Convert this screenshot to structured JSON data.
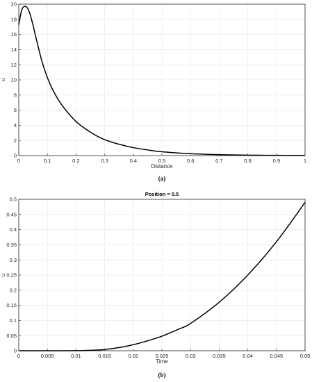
{
  "chart_data": [
    {
      "type": "line",
      "panel_label": "(a)",
      "title": "",
      "xlabel": "Distance",
      "ylabel": "u",
      "xlim": [
        0,
        1
      ],
      "ylim": [
        0,
        20
      ],
      "xticks": [
        0,
        0.1,
        0.2,
        0.3,
        0.4,
        0.5,
        0.6,
        0.7,
        0.8,
        0.9,
        1
      ],
      "xtick_labels": [
        "0",
        "0.1",
        "0.2",
        "0.3",
        "0.4",
        "0.5",
        "0.6",
        "0.7",
        "0.8",
        "0.9",
        "1"
      ],
      "yticks": [
        0,
        2,
        4,
        6,
        8,
        10,
        12,
        14,
        16,
        18,
        20
      ],
      "ytick_labels": [
        "0",
        "2",
        "4",
        "6",
        "8",
        "10",
        "12",
        "14",
        "16",
        "18",
        "20"
      ],
      "grid": true,
      "line_color": "#000000",
      "x": [
        0,
        0.01,
        0.02,
        0.03,
        0.04,
        0.05,
        0.06,
        0.08,
        0.1,
        0.12,
        0.15,
        0.2,
        0.25,
        0.3,
        0.35,
        0.4,
        0.45,
        0.5,
        0.6,
        0.7,
        0.8,
        0.9,
        1
      ],
      "y": [
        17.3,
        19.2,
        19.7,
        19.5,
        18.6,
        17.2,
        15.6,
        12.6,
        10.3,
        8.6,
        6.7,
        4.5,
        3.1,
        2.1,
        1.5,
        1.05,
        0.75,
        0.5,
        0.25,
        0.12,
        0.06,
        0.03,
        0.02
      ]
    },
    {
      "type": "line",
      "panel_label": "(b)",
      "title": "Position = 0.5",
      "xlabel": "Time",
      "ylabel": "u",
      "xlim": [
        0,
        0.05
      ],
      "ylim": [
        0,
        0.5
      ],
      "xticks": [
        0,
        0.005,
        0.01,
        0.015,
        0.02,
        0.025,
        0.03,
        0.035,
        0.04,
        0.045,
        0.05
      ],
      "xtick_labels": [
        "0",
        "0.005",
        "0.01",
        "0.015",
        "0.02",
        "0.025",
        "0.03",
        "0.035",
        "0.04",
        "0.045",
        "0.05"
      ],
      "yticks": [
        0,
        0.05,
        0.1,
        0.15,
        0.2,
        0.25,
        0.3,
        0.35,
        0.4,
        0.45,
        0.5
      ],
      "ytick_labels": [
        "0",
        "0.05",
        "0.1",
        "0.15",
        "0.2",
        "0.25",
        "0.3",
        "0.35",
        "0.4",
        "0.45",
        "0.5"
      ],
      "grid": true,
      "line_color": "#000000",
      "x": [
        0,
        0.005,
        0.01,
        0.012,
        0.015,
        0.018,
        0.02,
        0.022,
        0.025,
        0.028,
        0.03,
        0.035,
        0.04,
        0.045,
        0.05
      ],
      "y": [
        0,
        0,
        0.0003,
        0.001,
        0.004,
        0.012,
        0.02,
        0.03,
        0.048,
        0.072,
        0.09,
        0.16,
        0.25,
        0.36,
        0.49
      ]
    }
  ]
}
